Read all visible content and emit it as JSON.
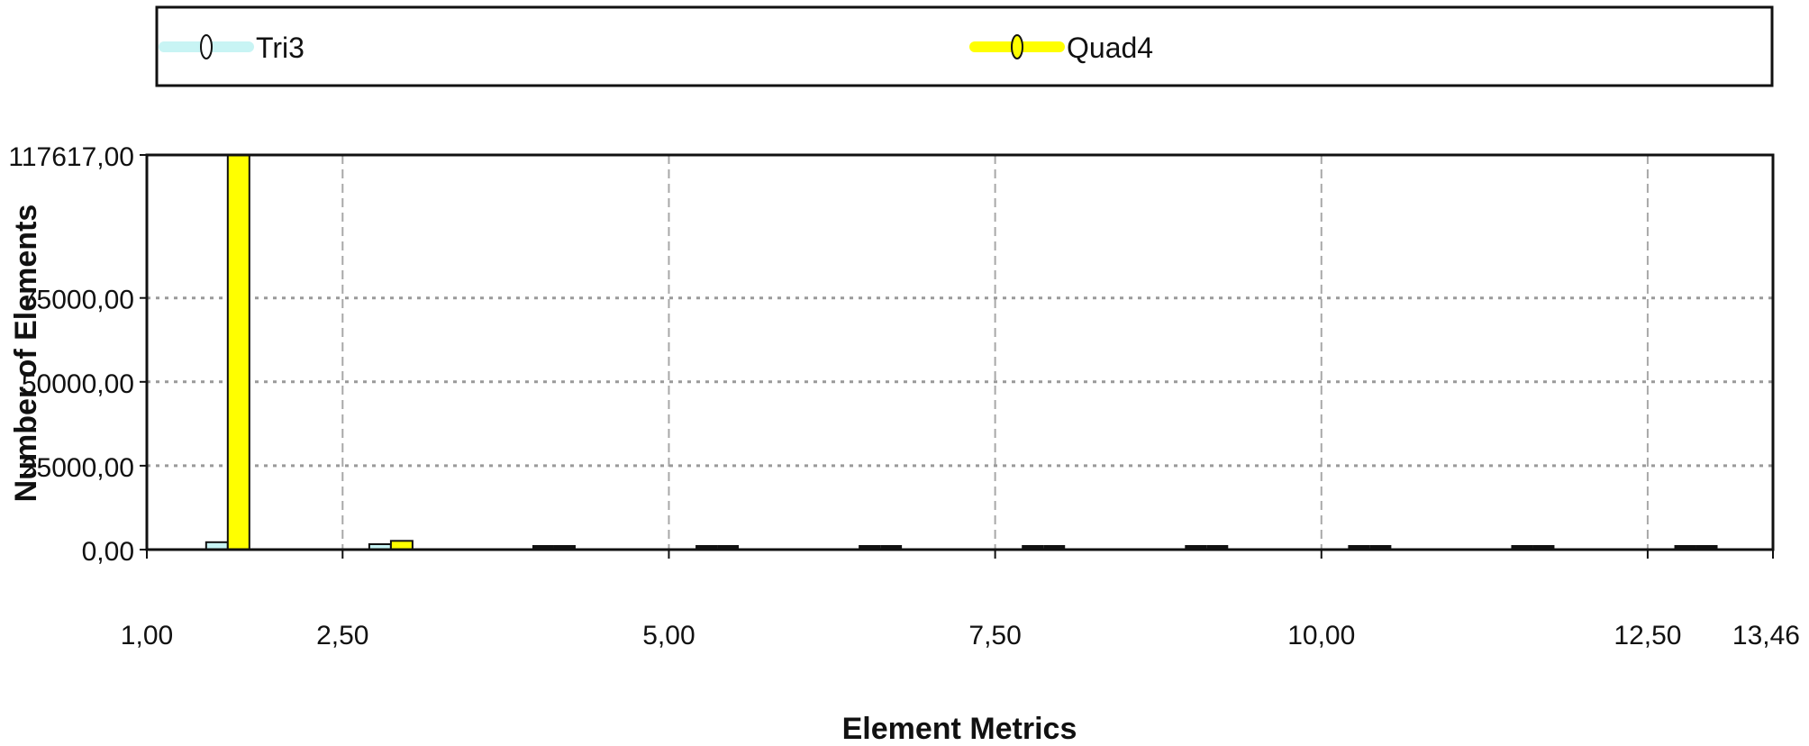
{
  "chart_data": {
    "type": "bar",
    "title": "",
    "xlabel": "Element Metrics",
    "ylabel": "Number of Elements",
    "xlim": [
      1.0,
      13.46
    ],
    "ylim": [
      0,
      117617
    ],
    "x_ticks": [
      {
        "value": 1.0,
        "label": "1,00"
      },
      {
        "value": 2.5,
        "label": "2,50"
      },
      {
        "value": 5.0,
        "label": "5,00"
      },
      {
        "value": 7.5,
        "label": "7,50"
      },
      {
        "value": 10.0,
        "label": "10,00"
      },
      {
        "value": 12.5,
        "label": "12,50"
      },
      {
        "value": 13.46,
        "label": "13,46"
      }
    ],
    "y_ticks": [
      {
        "value": 0,
        "label": "0,00"
      },
      {
        "value": 25000,
        "label": "25000,00"
      },
      {
        "value": 50000,
        "label": "50000,00"
      },
      {
        "value": 75000,
        "label": "75000,00"
      },
      {
        "value": 117617,
        "label": "117617,00"
      }
    ],
    "grid": true,
    "legend_position": "top",
    "bin_centers": [
      1.62,
      2.87,
      4.12,
      5.37,
      6.62,
      7.87,
      9.12,
      10.37,
      11.62,
      12.87
    ],
    "series": [
      {
        "name": "Tri3",
        "color": "#c8f4f4",
        "values": [
          2200,
          900,
          0,
          0,
          0,
          0,
          0,
          0,
          0,
          0
        ]
      },
      {
        "name": "Quad4",
        "color": "#ffff00",
        "values": [
          117617,
          2600,
          0,
          0,
          0,
          0,
          0,
          0,
          0,
          0
        ]
      }
    ]
  }
}
